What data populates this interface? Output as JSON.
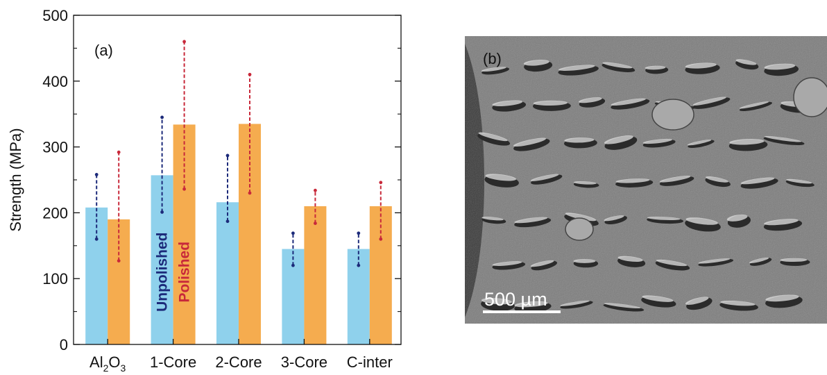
{
  "chart_data": {
    "type": "bar",
    "panel_label": "(a)",
    "ylabel": "Strength (MPa)",
    "ylim": [
      0,
      500
    ],
    "yticks": [
      0,
      100,
      200,
      300,
      400,
      500
    ],
    "categories": [
      "Al2O3",
      "1-Core",
      "2-Core",
      "3-Core",
      "C-inter"
    ],
    "category_labels": [
      {
        "base": "Al",
        "sub1": "2",
        "mid": "O",
        "sub2": "3"
      },
      {
        "base": "1-Core"
      },
      {
        "base": "2-Core"
      },
      {
        "base": "3-Core"
      },
      {
        "base": "C-inter"
      }
    ],
    "series": [
      {
        "name": "Unpolished",
        "color": "#87CEEB",
        "bar_color": "#86cdea",
        "err_color": "#1c2a7a",
        "values": [
          208,
          257,
          216,
          145,
          145
        ],
        "err_low": [
          160,
          201,
          187,
          120,
          120
        ],
        "err_high": [
          258,
          345,
          287,
          169,
          169
        ]
      },
      {
        "name": "Polished",
        "color": "#f4a540",
        "bar_color": "#f4a540",
        "err_color": "#c8293a",
        "values": [
          190,
          334,
          335,
          210,
          210
        ],
        "err_low": [
          127,
          236,
          230,
          184,
          160
        ],
        "err_high": [
          292,
          460,
          410,
          234,
          246
        ]
      }
    ],
    "grid": false
  },
  "micrograph": {
    "panel_label": "(b)",
    "scale_bar_label": "500 µm"
  }
}
